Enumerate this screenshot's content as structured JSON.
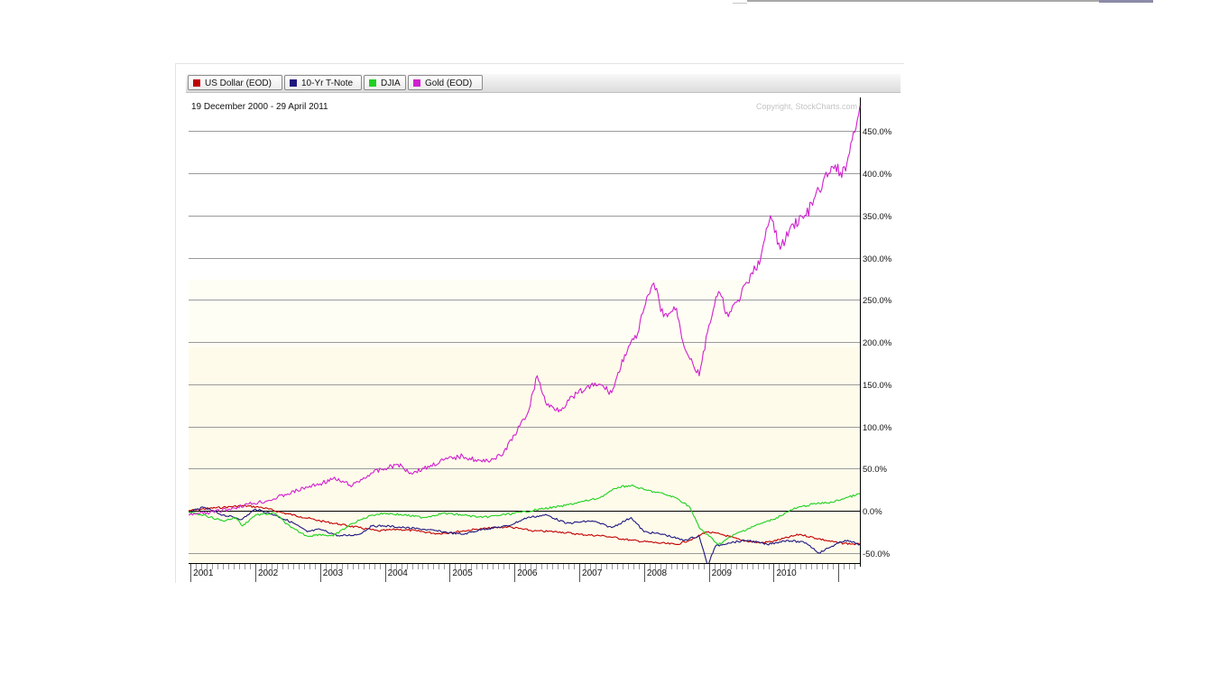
{
  "legend": [
    {
      "label": "US Dollar (EOD)",
      "color": "#c00000"
    },
    {
      "label": "10-Yr T-Note",
      "color": "#201880"
    },
    {
      "label": "DJIA",
      "color": "#20d020"
    },
    {
      "label": "Gold (EOD)",
      "color": "#d020d0"
    }
  ],
  "chart_data": {
    "type": "line",
    "date_range": "19 December 2000 - 29 April 2011",
    "copyright": "Copyright, StockCharts.com",
    "ylim": [
      -62,
      490
    ],
    "xlim": [
      2000.97,
      2011.33
    ],
    "y_tick_labels": [
      {
        "value": 450,
        "label": "450.0%"
      },
      {
        "value": 400,
        "label": "400.0%"
      },
      {
        "value": 350,
        "label": "350.0%"
      },
      {
        "value": 300,
        "label": "300.0%"
      },
      {
        "value": 250,
        "label": "250.0%"
      },
      {
        "value": 200,
        "label": "200.0%"
      },
      {
        "value": 150,
        "label": "150.0%"
      },
      {
        "value": 100,
        "label": "100.0%"
      },
      {
        "value": 50,
        "label": "50.0%"
      },
      {
        "value": 0,
        "label": "0.0%"
      },
      {
        "value": -50,
        "label": "-50.0%"
      }
    ],
    "x_tick_labels": [
      "2001",
      "2002",
      "2003",
      "2004",
      "2005",
      "2006",
      "2007",
      "2008",
      "2009",
      "2010"
    ],
    "series": [
      {
        "name": "US Dollar (EOD)",
        "color": "#c00000",
        "x": [
          2000.97,
          2001.3,
          2001.5,
          2001.8,
          2002.1,
          2002.4,
          2002.7,
          2003.0,
          2003.3,
          2003.6,
          2003.9,
          2004.2,
          2004.5,
          2004.8,
          2005.0,
          2005.4,
          2005.9,
          2006.3,
          2006.7,
          2007.0,
          2007.4,
          2007.8,
          2008.2,
          2008.5,
          2008.8,
          2008.95,
          2009.2,
          2009.5,
          2009.8,
          2010.0,
          2010.4,
          2010.8,
          2011.0,
          2011.33
        ],
        "y": [
          0,
          3,
          4,
          6,
          4,
          -2,
          -7,
          -12,
          -16,
          -20,
          -24,
          -22,
          -24,
          -27,
          -26,
          -22,
          -19,
          -24,
          -25,
          -28,
          -30,
          -35,
          -38,
          -40,
          -32,
          -25,
          -28,
          -35,
          -38,
          -36,
          -28,
          -35,
          -38,
          -40
        ]
      },
      {
        "name": "10-Yr T-Note",
        "color": "#201880",
        "x": [
          2000.97,
          2001.2,
          2001.5,
          2001.8,
          2002.0,
          2002.3,
          2002.6,
          2002.8,
          2003.0,
          2003.3,
          2003.6,
          2003.8,
          2004.0,
          2004.3,
          2004.6,
          2004.9,
          2005.2,
          2005.5,
          2005.9,
          2006.2,
          2006.5,
          2006.8,
          2007.2,
          2007.5,
          2007.8,
          2008.0,
          2008.3,
          2008.6,
          2008.85,
          2008.98,
          2009.1,
          2009.3,
          2009.6,
          2009.9,
          2010.2,
          2010.5,
          2010.7,
          2010.9,
          2011.1,
          2011.33
        ],
        "y": [
          -2,
          4,
          -5,
          -10,
          2,
          -5,
          -15,
          -25,
          -22,
          -30,
          -28,
          -18,
          -18,
          -20,
          -22,
          -25,
          -28,
          -22,
          -18,
          -8,
          -5,
          -15,
          -12,
          -20,
          -8,
          -25,
          -28,
          -35,
          -30,
          -65,
          -42,
          -38,
          -35,
          -40,
          -35,
          -38,
          -50,
          -42,
          -35,
          -40
        ]
      },
      {
        "name": "DJIA",
        "color": "#20d020",
        "x": [
          2000.97,
          2001.2,
          2001.5,
          2001.7,
          2001.8,
          2002.0,
          2002.3,
          2002.55,
          2002.8,
          2003.0,
          2003.2,
          2003.5,
          2003.8,
          2004.0,
          2004.3,
          2004.6,
          2004.9,
          2005.2,
          2005.5,
          2005.8,
          2006.1,
          2006.4,
          2006.7,
          2007.0,
          2007.3,
          2007.6,
          2007.8,
          2008.0,
          2008.3,
          2008.5,
          2008.7,
          2008.85,
          2009.0,
          2009.15,
          2009.4,
          2009.7,
          2010.0,
          2010.3,
          2010.6,
          2010.9,
          2011.1,
          2011.33
        ],
        "y": [
          -2,
          -5,
          -12,
          -8,
          -18,
          -5,
          -3,
          -20,
          -30,
          -28,
          -30,
          -15,
          -5,
          -3,
          -5,
          -8,
          -3,
          -5,
          -8,
          -5,
          -2,
          2,
          5,
          10,
          15,
          28,
          30,
          25,
          20,
          15,
          5,
          -20,
          -30,
          -40,
          -28,
          -18,
          -10,
          2,
          8,
          10,
          15,
          20
        ]
      },
      {
        "name": "Gold (EOD)",
        "color": "#d020d0",
        "x": [
          2000.97,
          2001.3,
          2001.6,
          2001.9,
          2002.2,
          2002.5,
          2002.8,
          2003.0,
          2003.2,
          2003.5,
          2003.8,
          2004.0,
          2004.2,
          2004.4,
          2004.6,
          2004.9,
          2005.2,
          2005.5,
          2005.8,
          2006.0,
          2006.2,
          2006.35,
          2006.5,
          2006.7,
          2006.9,
          2007.1,
          2007.3,
          2007.5,
          2007.7,
          2007.9,
          2008.0,
          2008.15,
          2008.3,
          2008.5,
          2008.6,
          2008.75,
          2008.85,
          2009.0,
          2009.15,
          2009.3,
          2009.45,
          2009.6,
          2009.8,
          2009.95,
          2010.1,
          2010.3,
          2010.5,
          2010.7,
          2010.85,
          2010.95,
          2011.05,
          2011.15,
          2011.33
        ],
        "y": [
          -5,
          -2,
          2,
          8,
          12,
          20,
          28,
          32,
          38,
          30,
          45,
          50,
          55,
          45,
          50,
          60,
          65,
          58,
          65,
          90,
          115,
          160,
          125,
          120,
          135,
          145,
          150,
          140,
          185,
          210,
          240,
          270,
          230,
          240,
          200,
          175,
          160,
          220,
          260,
          230,
          250,
          270,
          300,
          350,
          310,
          340,
          350,
          380,
          400,
          410,
          395,
          420,
          480
        ]
      }
    ]
  }
}
